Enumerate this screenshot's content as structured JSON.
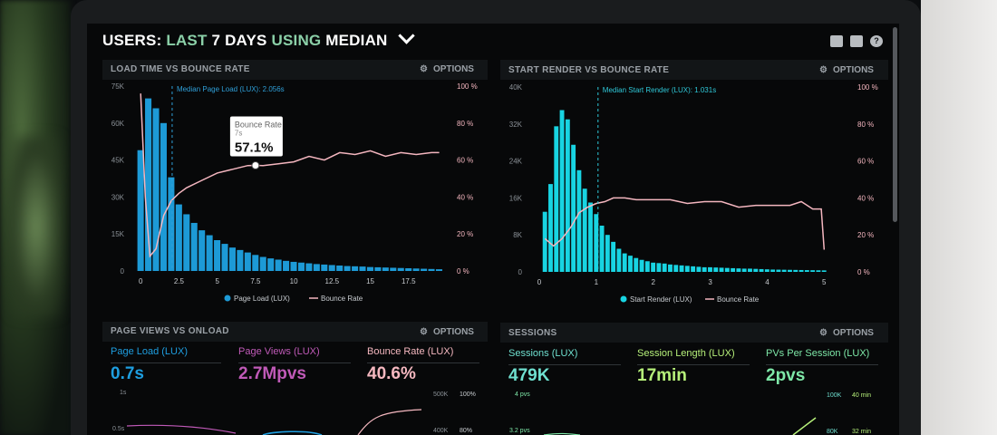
{
  "header": {
    "title_part1": "USERS:",
    "title_part2": "LAST",
    "title_part3": "7 DAYS",
    "title_part4": "USING",
    "title_part5": "MEDIAN",
    "icons": [
      "monitor-icon",
      "share-icon",
      "help-icon"
    ]
  },
  "panels": {
    "load_time": {
      "title": "LOAD TIME VS BOUNCE RATE",
      "options": "OPTIONS"
    },
    "start_render": {
      "title": "START RENDER VS BOUNCE RATE",
      "options": "OPTIONS"
    },
    "page_views": {
      "title": "PAGE VIEWS VS ONLOAD",
      "options": "OPTIONS"
    },
    "sessions": {
      "title": "SESSIONS",
      "options": "OPTIONS"
    }
  },
  "page_views_metrics": [
    {
      "label": "Page Load (LUX)",
      "value": "0.7s",
      "color": "#1e9ee0"
    },
    {
      "label": "Page Views (LUX)",
      "value": "2.7Mpvs",
      "color": "#c05ab8"
    },
    {
      "label": "Bounce Rate (LUX)",
      "value": "40.6%",
      "color": "#f5b8c0"
    }
  ],
  "page_views_axis": {
    "left": [
      "1s",
      "0.5s"
    ],
    "right_a": [
      "500K",
      "400K"
    ],
    "right_b": [
      "100%",
      "80%"
    ]
  },
  "sessions_metrics": [
    {
      "label": "Sessions (LUX)",
      "value": "479K",
      "color": "#6fe0d0"
    },
    {
      "label": "Session Length (LUX)",
      "value": "17min",
      "color": "#b6f07a"
    },
    {
      "label": "PVs Per Session (LUX)",
      "value": "2pvs",
      "color": "#7ee8a8"
    }
  ],
  "sessions_axis": {
    "left": [
      "4 pvs",
      "3.2 pvs"
    ],
    "right_a": [
      "100K",
      "80K"
    ],
    "right_b": [
      "40 min",
      "32 min"
    ]
  },
  "chart_data": [
    {
      "type": "bar",
      "title": "LOAD TIME VS BOUNCE RATE",
      "color": "#1d9ad6",
      "line_color": "#f4b6bf",
      "x_ticks": [
        "0",
        "2.5",
        "5",
        "7.5",
        "10",
        "12.5",
        "15",
        "17.5"
      ],
      "x_tick_values": [
        0,
        2.5,
        5,
        7.5,
        10,
        12.5,
        15,
        17.5
      ],
      "xlim": [
        -0.25,
        20
      ],
      "y_ticks": [
        "0",
        "15K",
        "30K",
        "45K",
        "60K",
        "75K"
      ],
      "ylim": [
        0,
        75000
      ],
      "y2_ticks": [
        "0 %",
        "20 %",
        "40 %",
        "60 %",
        "80 %",
        "100 %"
      ],
      "y2lim": [
        0,
        100
      ],
      "bar_width": 0.5,
      "series": [
        {
          "name": "Page Load (LUX)",
          "x": [
            0,
            0.5,
            1,
            1.5,
            2,
            2.5,
            3,
            3.5,
            4,
            4.5,
            5,
            5.5,
            6,
            6.5,
            7,
            7.5,
            8,
            8.5,
            9,
            9.5,
            10,
            10.5,
            11,
            11.5,
            12,
            12.5,
            13,
            13.5,
            14,
            14.5,
            15,
            15.5,
            16,
            16.5,
            17,
            17.5,
            18,
            18.5,
            19,
            19.5
          ],
          "values": [
            49000,
            70000,
            66000,
            60000,
            38000,
            27000,
            23000,
            19500,
            16500,
            14500,
            12500,
            11000,
            9500,
            8500,
            7500,
            6500,
            5700,
            5100,
            4600,
            4100,
            3700,
            3400,
            3100,
            2800,
            2600,
            2400,
            2200,
            2000,
            1900,
            1800,
            1600,
            1500,
            1400,
            1300,
            1200,
            1100,
            1000,
            900,
            800,
            700
          ]
        },
        {
          "name": "Bounce Rate",
          "type": "line",
          "x": [
            0,
            0.3,
            0.6,
            1,
            1.5,
            2,
            2.5,
            3,
            4,
            5,
            6,
            7,
            7.5,
            8,
            9,
            10,
            11,
            12,
            13,
            14,
            15,
            16,
            17,
            18,
            19,
            19.5
          ],
          "values": [
            96,
            40,
            8,
            12,
            30,
            38,
            42,
            45,
            49,
            53,
            55,
            57,
            57.1,
            57,
            58,
            59,
            62,
            60,
            64,
            63,
            65,
            62,
            64,
            63,
            64,
            64
          ]
        }
      ],
      "annotations": {
        "median_label": "Median Page Load (LUX): 2.056s",
        "median_x": 2.056,
        "tooltip_title": "Bounce Rate",
        "tooltip_sub": "7s",
        "tooltip_value": "57.1%",
        "tooltip_x": 7.5,
        "tooltip_y": 57.1
      },
      "legend": [
        "Page Load (LUX)",
        "Bounce Rate"
      ],
      "legend_position": "bottom"
    },
    {
      "type": "bar",
      "title": "START RENDER VS BOUNCE RATE",
      "color": "#18d4e2",
      "line_color": "#f4b6bf",
      "x_ticks": [
        "0",
        "1",
        "2",
        "3",
        "4",
        "5"
      ],
      "x_tick_values": [
        0,
        1,
        2,
        3,
        4,
        5
      ],
      "xlim": [
        0,
        5.25
      ],
      "y_ticks": [
        "0",
        "8K",
        "16K",
        "24K",
        "32K",
        "40K"
      ],
      "ylim": [
        0,
        40000
      ],
      "y2_ticks": [
        "0 %",
        "20 %",
        "40 %",
        "60 %",
        "80 %",
        "100 %"
      ],
      "y2lim": [
        0,
        100
      ],
      "bar_width": 0.1,
      "series": [
        {
          "name": "Start Render (LUX)",
          "x": [
            0.1,
            0.2,
            0.3,
            0.4,
            0.5,
            0.6,
            0.7,
            0.8,
            0.9,
            1.0,
            1.1,
            1.2,
            1.3,
            1.4,
            1.5,
            1.6,
            1.7,
            1.8,
            1.9,
            2.0,
            2.1,
            2.2,
            2.3,
            2.4,
            2.5,
            2.6,
            2.7,
            2.8,
            2.9,
            3.0,
            3.1,
            3.2,
            3.3,
            3.4,
            3.5,
            3.6,
            3.7,
            3.8,
            3.9,
            4.0,
            4.1,
            4.2,
            4.3,
            4.4,
            4.5,
            4.6,
            4.7,
            4.8,
            4.9,
            5.0
          ],
          "values": [
            13000,
            19000,
            31500,
            35000,
            33000,
            27500,
            22000,
            18000,
            15000,
            12500,
            10000,
            8000,
            6500,
            5000,
            4000,
            3500,
            3000,
            2600,
            2300,
            2000,
            1900,
            1800,
            1600,
            1500,
            1400,
            1300,
            1200,
            1100,
            1000,
            1000,
            950,
            900,
            850,
            800,
            750,
            700,
            700,
            650,
            600,
            550,
            500,
            480,
            460,
            440,
            420,
            400,
            380,
            360,
            340,
            320
          ]
        },
        {
          "name": "Bounce Rate",
          "type": "line",
          "x": [
            0.1,
            0.25,
            0.4,
            0.55,
            0.7,
            0.85,
            1.0,
            1.15,
            1.3,
            1.5,
            1.7,
            2.0,
            2.3,
            2.6,
            2.9,
            3.2,
            3.5,
            3.8,
            4.1,
            4.4,
            4.6,
            4.8,
            4.95,
            5.0
          ],
          "values": [
            18,
            14,
            18,
            24,
            32,
            35,
            37,
            38,
            40,
            40,
            39,
            39,
            39,
            37,
            38,
            38,
            35,
            36,
            36,
            36,
            38,
            34,
            34,
            12
          ]
        }
      ],
      "annotations": {
        "median_label": "Median Start Render (LUX): 1.031s",
        "median_x": 1.031
      },
      "legend": [
        "Start Render (LUX)",
        "Bounce Rate"
      ],
      "legend_position": "bottom"
    }
  ]
}
